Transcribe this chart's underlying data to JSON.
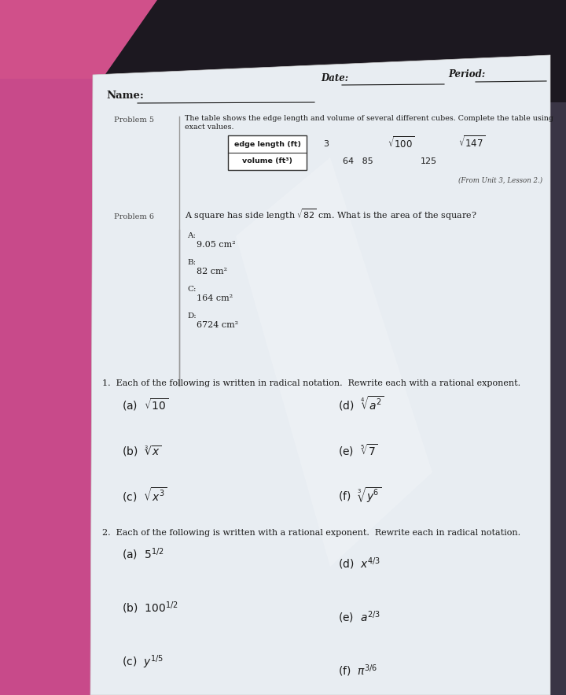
{
  "bg_dark": "#1a1a1a",
  "bg_mid": "#2a2530",
  "pink_color": "#c84a8a",
  "paper_color": "#e8edf2",
  "paper_shadow": "#d0d8e0",
  "header_date": "Date:",
  "header_period": "Period:",
  "header_name": "Name:",
  "problem5_label": "Problem 5",
  "table_row1_label": "edge length (ft)",
  "table_row2_label": "volume (ft³)",
  "from_unit": "(From Unit 3, Lesson 2.)",
  "problem6_label": "Problem 6",
  "choices": [
    [
      "A:",
      "9.05 cm²"
    ],
    [
      "B:",
      "82 cm²"
    ],
    [
      "C:",
      "164 cm²"
    ],
    [
      "D:",
      "6724 cm²"
    ]
  ],
  "q1_header": "1.  Each of the following is written in radical notation.  Rewrite each with a rational exponent.",
  "q1_items_left": [
    "(a)  $\\sqrt{10}$",
    "(b)  $\\sqrt[3]{x}$",
    "(c)  $\\sqrt{x^3}$"
  ],
  "q1_items_right": [
    "(d)  $\\sqrt[4]{a^2}$",
    "(e)  $\\sqrt[5]{7}$",
    "(f)  $\\sqrt[3]{y^6}$"
  ],
  "q2_header": "2.  Each of the following is written with a rational exponent.  Rewrite each in radical notation.",
  "q2_items_left": [
    "(a)  $5^{1/2}$",
    "(b)  $100^{1/2}$",
    "(c)  $y^{1/5}$"
  ],
  "q2_items_right": [
    "(d)  $x^{4/3}$",
    "(e)  $a^{2/3}$",
    "(f)  $\\pi^{3/6}$"
  ],
  "font_color": "#1a1a1a",
  "label_color": "#444444",
  "line_color": "#666666"
}
